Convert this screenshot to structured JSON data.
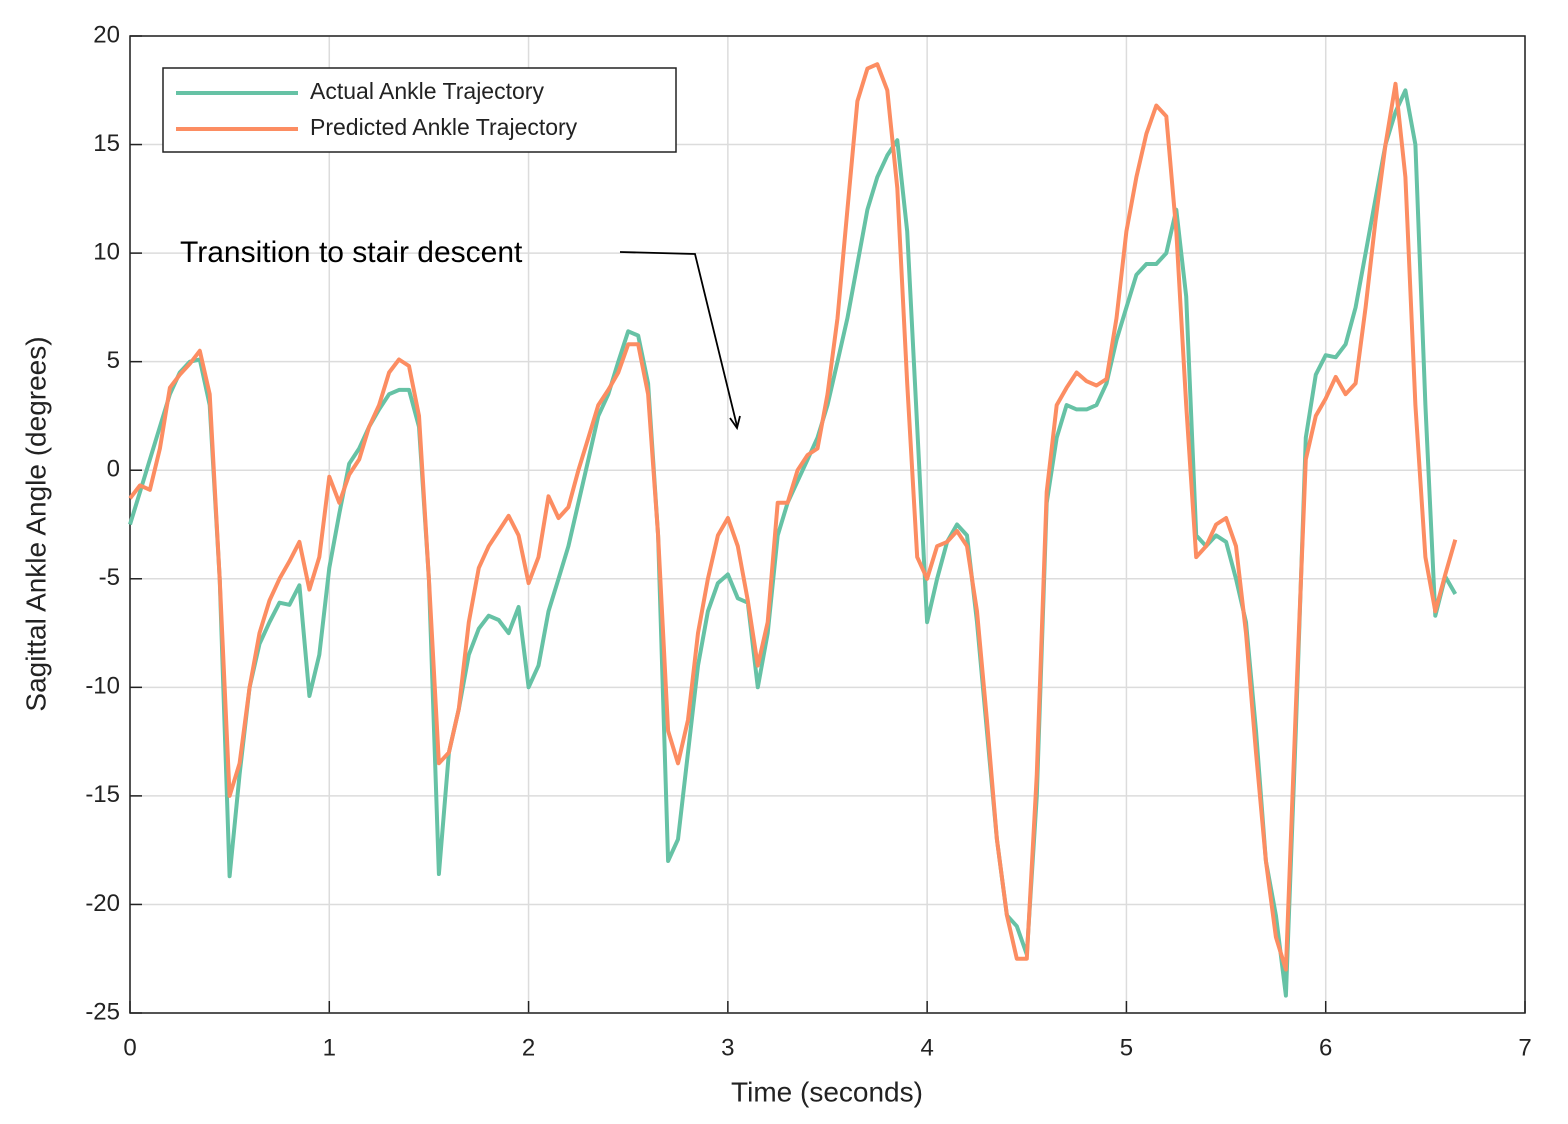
{
  "chart_data": {
    "type": "line",
    "xlabel": "Time (seconds)",
    "ylabel": "Sagittal Ankle Angle (degrees)",
    "annotation": "Transition to stair descent",
    "xlim": [
      0,
      7
    ],
    "xticks": [
      0,
      1,
      2,
      3,
      4,
      5,
      6,
      7
    ],
    "ylim": [
      -25,
      20
    ],
    "yticks": [
      -25,
      -20,
      -15,
      -10,
      -5,
      0,
      5,
      10,
      15,
      20
    ],
    "grid": true,
    "legend": "upper left",
    "x": [
      0,
      0.05,
      0.1,
      0.15,
      0.2,
      0.25,
      0.3,
      0.35,
      0.4,
      0.45,
      0.5,
      0.55,
      0.6,
      0.65,
      0.7,
      0.75,
      0.8,
      0.85,
      0.9,
      0.95,
      1,
      1.05,
      1.1,
      1.15,
      1.2,
      1.25,
      1.3,
      1.35,
      1.4,
      1.45,
      1.5,
      1.55,
      1.6,
      1.65,
      1.7,
      1.75,
      1.8,
      1.85,
      1.9,
      1.95,
      2,
      2.05,
      2.1,
      2.15,
      2.2,
      2.25,
      2.3,
      2.35,
      2.4,
      2.45,
      2.5,
      2.55,
      2.6,
      2.65,
      2.7,
      2.75,
      2.8,
      2.85,
      2.9,
      2.95,
      3,
      3.05,
      3.1,
      3.15,
      3.2,
      3.25,
      3.3,
      3.35,
      3.4,
      3.45,
      3.5,
      3.55,
      3.6,
      3.65,
      3.7,
      3.75,
      3.8,
      3.85,
      3.9,
      3.95,
      4,
      4.05,
      4.1,
      4.15,
      4.2,
      4.25,
      4.3,
      4.35,
      4.4,
      4.45,
      4.5,
      4.55,
      4.6,
      4.65,
      4.7,
      4.75,
      4.8,
      4.85,
      4.9,
      4.95,
      5,
      5.05,
      5.1,
      5.15,
      5.2,
      5.25,
      5.3,
      5.35,
      5.4,
      5.45,
      5.5,
      5.55,
      5.6,
      5.65,
      5.7,
      5.75,
      5.8,
      5.85,
      5.9,
      5.95,
      6,
      6.05,
      6.1,
      6.15,
      6.2,
      6.25,
      6.3,
      6.35,
      6.4,
      6.45,
      6.5,
      6.55,
      6.6,
      6.65
    ],
    "series": [
      {
        "name": "Actual Ankle Trajectory",
        "color": "#66c2a5",
        "values": [
          -2.5,
          -1.0,
          0.5,
          2.0,
          3.5,
          4.5,
          5.0,
          5.1,
          3.0,
          -5.0,
          -18.7,
          -14.0,
          -10.0,
          -8.0,
          -7.0,
          -6.1,
          -6.2,
          -5.3,
          -10.4,
          -8.5,
          -4.5,
          -2.0,
          0.3,
          1.0,
          2.0,
          2.8,
          3.5,
          3.7,
          3.7,
          2.0,
          -5.0,
          -18.6,
          -13.0,
          -11.0,
          -8.5,
          -7.3,
          -6.7,
          -6.9,
          -7.5,
          -6.3,
          -10.0,
          -9.0,
          -6.5,
          -5.0,
          -3.5,
          -1.5,
          0.5,
          2.5,
          3.5,
          5.0,
          6.4,
          6.2,
          4.0,
          -3.0,
          -18.0,
          -17.0,
          -13.0,
          -9.0,
          -6.5,
          -5.2,
          -4.8,
          -5.9,
          -6.1,
          -10.0,
          -7.5,
          -3.0,
          -1.5,
          -0.5,
          0.5,
          1.5,
          3.0,
          5.0,
          7.0,
          9.5,
          12.0,
          13.5,
          14.5,
          15.2,
          11.0,
          2.0,
          -7.0,
          -5.0,
          -3.3,
          -2.5,
          -3.0,
          -7.0,
          -12.0,
          -17.0,
          -20.5,
          -21.0,
          -22.3,
          -15.0,
          -1.5,
          1.5,
          3.0,
          2.8,
          2.8,
          3.0,
          4.0,
          6.0,
          7.5,
          9.0,
          9.5,
          9.5,
          10.0,
          12.0,
          8.0,
          -3.0,
          -3.5,
          -3.0,
          -3.3,
          -5.0,
          -7.0,
          -12.0,
          -18.0,
          -20.5,
          -24.2,
          -12.0,
          1.5,
          4.4,
          5.3,
          5.2,
          5.8,
          7.5,
          10.0,
          12.5,
          15.0,
          16.5,
          17.5,
          15.0,
          3.0,
          -6.7,
          -4.9,
          -5.7
        ]
      },
      {
        "name": "Predicted Ankle Trajectory",
        "color": "#fc8d62",
        "values": [
          -1.3,
          -0.7,
          -0.9,
          1.0,
          3.8,
          4.4,
          4.9,
          5.5,
          3.5,
          -5.0,
          -15.0,
          -13.5,
          -10.0,
          -7.5,
          -6.0,
          -5.0,
          -4.2,
          -3.3,
          -5.5,
          -4.0,
          -0.3,
          -1.5,
          -0.2,
          0.5,
          2.0,
          3.0,
          4.5,
          5.1,
          4.8,
          2.5,
          -5.0,
          -13.5,
          -13.0,
          -11.0,
          -7.0,
          -4.5,
          -3.5,
          -2.8,
          -2.1,
          -3.0,
          -5.2,
          -4.0,
          -1.2,
          -2.2,
          -1.7,
          0.0,
          1.5,
          3.0,
          3.7,
          4.5,
          5.8,
          5.8,
          3.5,
          -3.0,
          -12.0,
          -13.5,
          -11.5,
          -7.5,
          -5.0,
          -3.0,
          -2.2,
          -3.5,
          -6.0,
          -9.0,
          -7.0,
          -1.5,
          -1.5,
          0.0,
          0.7,
          1.0,
          3.5,
          7.0,
          12.0,
          17.0,
          18.5,
          18.7,
          17.5,
          13.0,
          4.0,
          -4.0,
          -5.0,
          -3.5,
          -3.3,
          -2.8,
          -3.5,
          -6.5,
          -11.5,
          -17.0,
          -20.5,
          -22.5,
          -22.5,
          -14.0,
          -1.0,
          3.0,
          3.8,
          4.5,
          4.1,
          3.9,
          4.2,
          7.0,
          11.0,
          13.5,
          15.5,
          16.8,
          16.3,
          11.0,
          3.0,
          -4.0,
          -3.5,
          -2.5,
          -2.2,
          -3.5,
          -7.5,
          -13.0,
          -18.0,
          -21.5,
          -23.0,
          -11.0,
          0.5,
          2.5,
          3.3,
          4.3,
          3.5,
          4.0,
          7.5,
          11.5,
          15.0,
          17.8,
          13.5,
          3.0,
          -4.0,
          -6.5,
          -4.8,
          -3.2
        ]
      }
    ]
  }
}
